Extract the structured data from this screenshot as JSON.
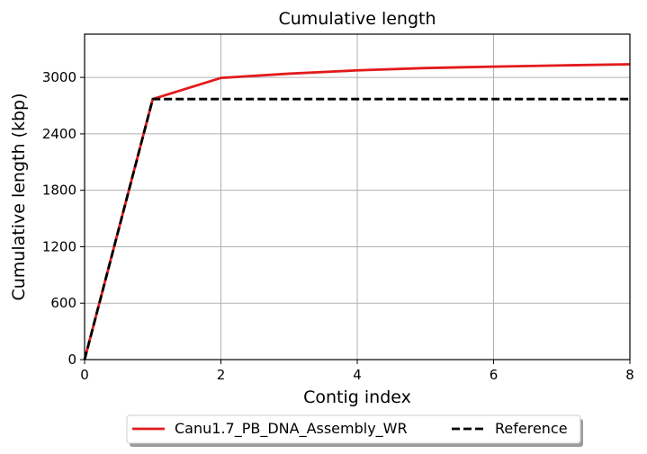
{
  "chart_data": {
    "type": "line",
    "title": "Cumulative length",
    "xlabel": "Contig index",
    "ylabel": "Cumulative length (kbp)",
    "xlim": [
      0,
      8
    ],
    "ylim": [
      0,
      3460
    ],
    "xticks": [
      0,
      2,
      4,
      6,
      8
    ],
    "yticks": [
      0,
      600,
      1200,
      1800,
      2400,
      3000
    ],
    "grid": true,
    "legend_position": "bottom-center, outside",
    "series": [
      {
        "name": "Canu1.7_PB_DNA_Assembly_WR",
        "color": "#e31a1c",
        "line_style": "solid",
        "x": [
          0,
          1,
          2,
          3,
          4,
          5,
          6,
          7,
          8
        ],
        "y": [
          0,
          2770,
          2995,
          3040,
          3075,
          3100,
          3115,
          3128,
          3140
        ]
      },
      {
        "name": "Reference",
        "color": "#000000",
        "line_style": "dashed",
        "x": [
          0,
          1,
          8
        ],
        "y": [
          0,
          2770,
          2770
        ]
      }
    ]
  }
}
